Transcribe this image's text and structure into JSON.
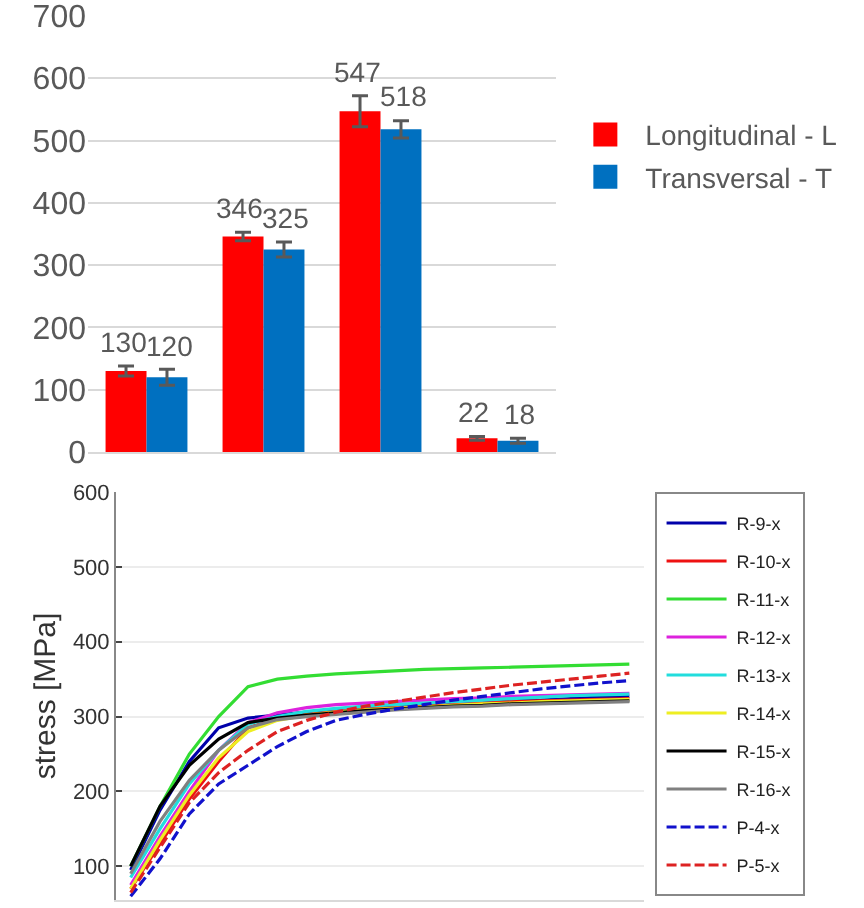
{
  "chart_data": [
    {
      "type": "bar",
      "categories": [
        null,
        null,
        null,
        null
      ],
      "series": [
        {
          "name": "Longitudinal - L",
          "color": "#ff0000",
          "values": [
            130,
            346,
            547,
            22
          ],
          "errors": [
            8,
            7,
            25,
            3
          ]
        },
        {
          "name": "Transversal - T",
          "color": "#0070c0",
          "values": [
            120,
            325,
            518,
            18
          ],
          "errors": [
            13,
            12,
            14,
            4
          ]
        }
      ],
      "ylim": [
        0,
        700
      ],
      "yticks": [
        0,
        100,
        200,
        300,
        400,
        500,
        600,
        700
      ],
      "grid": "y",
      "legend": "right",
      "tick_labels": "y",
      "data_labels": true
    },
    {
      "type": "line",
      "ylabel": "stress [MPa]",
      "categories": [
        null,
        null,
        null,
        null,
        null,
        null,
        null,
        null,
        null,
        null,
        null,
        null,
        null,
        null,
        null,
        null,
        null,
        null
      ],
      "series": [
        {
          "name": "R-9-x",
          "color": "#0000aa",
          "line_style": "solid",
          "values": [
            95,
            175,
            240,
            285,
            298,
            302,
            306,
            309,
            311,
            313,
            315,
            316,
            318,
            321,
            322,
            324,
            326,
            327
          ]
        },
        {
          "name": "R-10-x",
          "color": "#ee1111",
          "line_style": "solid",
          "values": [
            70,
            130,
            190,
            240,
            285,
            298,
            303,
            307,
            310,
            312,
            314,
            316,
            318,
            320,
            321,
            322,
            323,
            324
          ]
        },
        {
          "name": "R-11-x",
          "color": "#33dd33",
          "line_style": "solid",
          "values": [
            100,
            180,
            250,
            300,
            340,
            350,
            354,
            357,
            359,
            361,
            363,
            364,
            365,
            366,
            367,
            368,
            369,
            370
          ]
        },
        {
          "name": "R-12-x",
          "color": "#dd22dd",
          "line_style": "solid",
          "values": [
            75,
            140,
            200,
            255,
            292,
            305,
            312,
            316,
            318,
            320,
            322,
            324,
            325,
            327,
            328,
            329,
            330,
            331
          ]
        },
        {
          "name": "R-13-x",
          "color": "#22dddd",
          "line_style": "solid",
          "values": [
            85,
            150,
            210,
            255,
            290,
            300,
            307,
            311,
            314,
            316,
            318,
            320,
            322,
            324,
            326,
            328,
            329,
            330
          ]
        },
        {
          "name": "R-14-x",
          "color": "#eeee22",
          "line_style": "solid",
          "values": [
            70,
            135,
            195,
            245,
            280,
            295,
            302,
            306,
            309,
            311,
            313,
            315,
            317,
            318,
            320,
            321,
            322,
            323
          ]
        },
        {
          "name": "R-15-x",
          "color": "#000000",
          "line_style": "solid",
          "values": [
            100,
            180,
            235,
            270,
            292,
            298,
            302,
            305,
            308,
            310,
            312,
            314,
            315,
            317,
            318,
            319,
            320,
            321
          ]
        },
        {
          "name": "R-16-x",
          "color": "#808080",
          "line_style": "solid",
          "values": [
            90,
            160,
            215,
            255,
            285,
            296,
            300,
            303,
            306,
            309,
            311,
            313,
            314,
            316,
            317,
            318,
            319,
            320
          ]
        },
        {
          "name": "P-4-x",
          "color": "#1111cc",
          "line_style": "dashed",
          "values": [
            60,
            110,
            170,
            210,
            235,
            260,
            280,
            295,
            303,
            310,
            316,
            322,
            327,
            332,
            337,
            341,
            345,
            348
          ]
        },
        {
          "name": "P-5-x",
          "color": "#dd2222",
          "line_style": "dashed",
          "values": [
            65,
            125,
            185,
            225,
            255,
            280,
            295,
            306,
            314,
            320,
            326,
            332,
            337,
            342,
            346,
            350,
            354,
            358
          ]
        }
      ],
      "ylim": [
        55,
        600
      ],
      "yticks": [
        100,
        200,
        300,
        400,
        500,
        600
      ],
      "grid": "y",
      "legend": "right",
      "tick_labels": "y"
    }
  ]
}
